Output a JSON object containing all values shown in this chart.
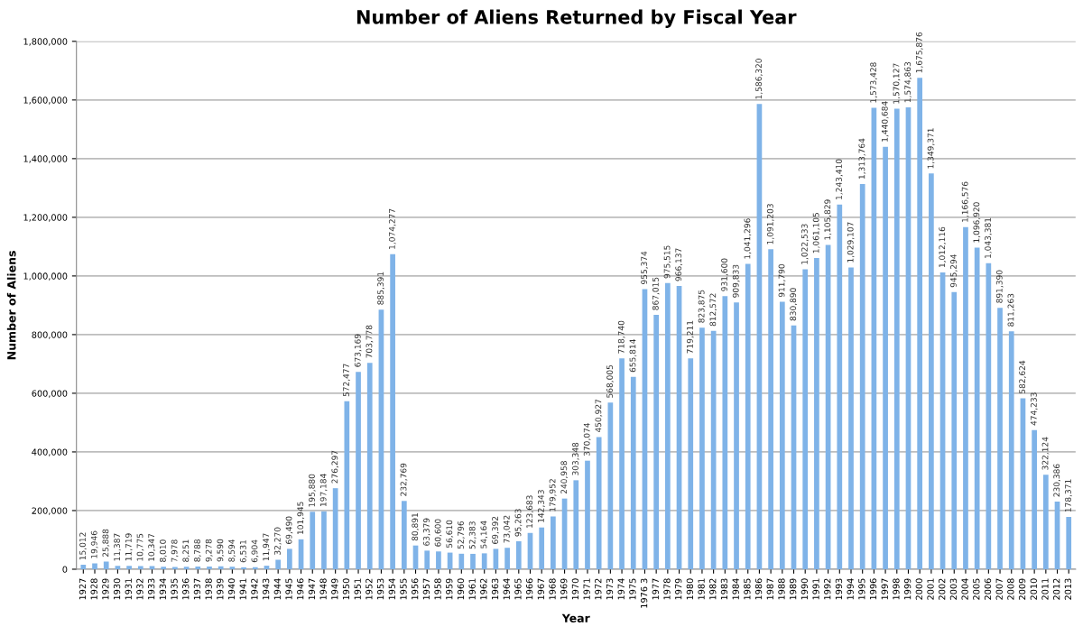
{
  "chart_data": {
    "type": "bar",
    "title": "Number of Aliens Returned by Fiscal Year",
    "xlabel": "Year",
    "ylabel": "Number of Aliens",
    "categories": [
      "1927",
      "1928",
      "1929",
      "1930",
      "1931",
      "1932",
      "1933",
      "1934",
      "1935",
      "1936",
      "1937",
      "1938",
      "1939",
      "1940",
      "1941",
      "1942",
      "1943",
      "1944",
      "1945",
      "1946",
      "1947",
      "1948",
      "1949",
      "1950",
      "1951",
      "1952",
      "1953",
      "1954",
      "1955",
      "1956",
      "1957",
      "1958",
      "1959",
      "1960",
      "1961",
      "1962",
      "1963",
      "1964",
      "1965",
      "1966",
      "1967",
      "1968",
      "1969",
      "1970",
      "1971",
      "1972",
      "1973",
      "1974",
      "1975",
      "1976 3",
      "1977",
      "1978",
      "1979",
      "1980",
      "1981",
      "1982",
      "1983",
      "1984",
      "1985",
      "1986",
      "1987",
      "1988",
      "1989",
      "1990",
      "1991",
      "1992",
      "1993",
      "1994",
      "1995",
      "1996",
      "1997",
      "1998",
      "1999",
      "2000",
      "2001",
      "2002",
      "2003",
      "2004",
      "2005",
      "2006",
      "2007",
      "2008",
      "2009",
      "2010",
      "2011",
      "2012",
      "2013"
    ],
    "values": [
      15012,
      19946,
      25888,
      11387,
      11719,
      10775,
      10347,
      8010,
      7978,
      8251,
      8788,
      9278,
      9590,
      8594,
      6531,
      6904,
      11947,
      32270,
      69490,
      101945,
      195880,
      197184,
      276297,
      572477,
      673169,
      703778,
      885391,
      1074277,
      232769,
      80891,
      63379,
      60600,
      56610,
      52796,
      52383,
      54164,
      69392,
      73042,
      95263,
      123683,
      142343,
      179952,
      240958,
      303348,
      370074,
      450927,
      568005,
      718740,
      655814,
      955374,
      867015,
      975515,
      966137,
      719211,
      823875,
      812572,
      931600,
      909833,
      1041296,
      1586320,
      1091203,
      911790,
      830890,
      1022533,
      1061105,
      1105829,
      1243410,
      1029107,
      1313764,
      1573428,
      1440684,
      1570127,
      1574863,
      1675876,
      1349371,
      1012116,
      945294,
      1166576,
      1096920,
      1043381,
      891390,
      811263,
      582624,
      474233,
      322124,
      230386,
      178371
    ],
    "color": "#7fb3e8",
    "value_labels": [
      "15,012",
      "19,946",
      "25,888",
      "11,387",
      "11,719",
      "10,775",
      "10,347",
      "8,010",
      "7,978",
      "8,251",
      "8,788",
      "9,278",
      "9,590",
      "8,594",
      "6,531",
      "6,904",
      "11,947",
      "32,270",
      "69,490",
      "101,945",
      "195,880",
      "197,184",
      "276,297",
      "572,477",
      "673,169",
      "703,778",
      "885,391",
      "1,074,277",
      "232,769",
      "80,891",
      "63,379",
      "60,600",
      "56,610",
      "52,796",
      "52,383",
      "54,164",
      "69,392",
      "73,042",
      "95,263",
      "123,683",
      "142,343",
      "179,952",
      "240,958",
      "303,348",
      "370,074",
      "450,927",
      "568,005",
      "718,740",
      "655,814",
      "955,374",
      "867,015",
      "975,515",
      "966,137",
      "719,211",
      "823,875",
      "812,572",
      "931,600",
      "909,833",
      "1,041,296",
      "1,586,320",
      "1,091,203",
      "911,790",
      "830,890",
      "1,022,533",
      "1,061,105",
      "1,105,829",
      "1,243,410",
      "1,029,107",
      "1,313,764",
      "1,573,428",
      "1,440,684",
      "1,570,127",
      "1,574,863",
      "1,675,876",
      "1,349,371",
      "1,012,116",
      "945,294",
      "1,166,576",
      "1,096,920",
      "1,043,381",
      "891,390",
      "811,263",
      "582,624",
      "474,233",
      "322,124",
      "230,386",
      "178,371"
    ],
    "ylim": [
      0,
      1800000
    ],
    "yticks": [
      0,
      {
        "value": 200000,
        "label": "200,000"
      },
      {
        "value": 400000,
        "label": "400,000"
      },
      {
        "value": 600000,
        "label": "600,000"
      },
      {
        "value": 800000,
        "label": "800,000"
      },
      {
        "value": 1000000,
        "label": "1,000,000"
      },
      {
        "value": 1200000,
        "label": "1,200,000"
      },
      {
        "value": 1400000,
        "label": "1,400,000"
      },
      {
        "value": 1600000,
        "label": "1,600,000"
      },
      {
        "value": 1800000,
        "label": "1,800,000"
      }
    ],
    "grid": "y"
  }
}
